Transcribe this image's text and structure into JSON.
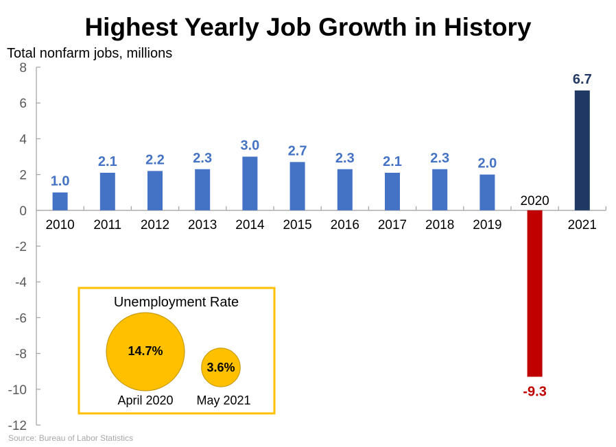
{
  "chart_data": {
    "type": "bar",
    "title": "Highest Yearly Job Growth in History",
    "ylabel": "Total nonfarm jobs, millions",
    "xlabel": "",
    "ylim": [
      -12,
      8
    ],
    "yticks": [
      8,
      6,
      4,
      2,
      0,
      -2,
      -4,
      -6,
      -8,
      -10,
      -12
    ],
    "grid": false,
    "categories": [
      "2010",
      "2011",
      "2012",
      "2013",
      "2014",
      "2015",
      "2016",
      "2017",
      "2018",
      "2019",
      "2020",
      "2021"
    ],
    "values": [
      1.0,
      2.1,
      2.2,
      2.3,
      3.0,
      2.7,
      2.3,
      2.1,
      2.3,
      2.0,
      -9.3,
      6.7
    ],
    "data_labels": [
      "1.0",
      "2.1",
      "2.2",
      "2.3",
      "3.0",
      "2.7",
      "2.3",
      "2.1",
      "2.3",
      "2.0",
      "-9.3",
      "6.7"
    ],
    "colors": {
      "default": "#4472C4",
      "2020": "#C00000",
      "2021": "#203864"
    },
    "source": "Source: Bureau of Labor Statistics",
    "inset": {
      "title": "Unemployment Rate",
      "border_color": "#FFC000",
      "bubble_color": "#FFC000",
      "bubbles": [
        {
          "label": "April 2020",
          "value_label": "14.7%",
          "value": 14.7
        },
        {
          "label": "May 2021",
          "value_label": "3.6%",
          "value": 3.6
        }
      ]
    }
  }
}
